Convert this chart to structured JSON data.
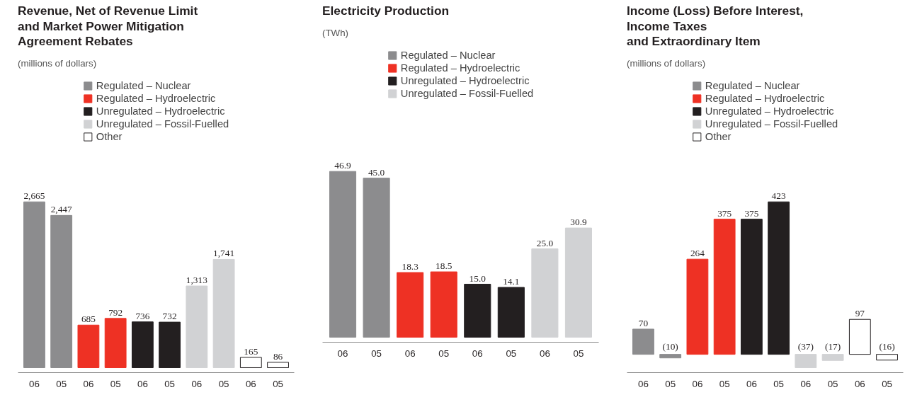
{
  "chart_data": [
    {
      "type": "bar",
      "title": "Revenue, Net of Revenue Limit\nand Market Power Mitigation\nAgreement Rebates",
      "subtitle": "(millions of dollars)",
      "categories": [
        "06",
        "05",
        "06",
        "05",
        "06",
        "05",
        "06",
        "05",
        "06",
        "05"
      ],
      "legend": "top",
      "series": [
        {
          "name": "Regulated – Nuclear",
          "color": "#8c8c8e",
          "values": [
            2665,
            2447,
            null,
            null,
            null,
            null,
            null,
            null,
            null,
            null
          ],
          "value_labels": [
            "2,665",
            "2,447",
            null,
            null,
            null,
            null,
            null,
            null,
            null,
            null
          ]
        },
        {
          "name": "Regulated – Hydroelectric",
          "color": "#ee3124",
          "values": [
            null,
            null,
            685,
            792,
            null,
            null,
            null,
            null,
            null,
            null
          ],
          "value_labels": [
            null,
            null,
            "685",
            "792",
            null,
            null,
            null,
            null,
            null,
            null
          ]
        },
        {
          "name": "Unregulated – Hydroelectric",
          "color": "#231f20",
          "values": [
            null,
            null,
            null,
            null,
            736,
            732,
            null,
            null,
            null,
            null
          ],
          "value_labels": [
            null,
            null,
            null,
            null,
            "736",
            "732",
            null,
            null,
            null,
            null
          ]
        },
        {
          "name": "Unregulated – Fossil-Fuelled",
          "color": "#d1d2d4",
          "values": [
            null,
            null,
            null,
            null,
            null,
            null,
            1313,
            1741,
            null,
            null
          ],
          "value_labels": [
            null,
            null,
            null,
            null,
            null,
            null,
            "1,313",
            "1,741",
            null,
            null
          ]
        },
        {
          "name": "Other",
          "color": "#ffffff",
          "values": [
            null,
            null,
            null,
            null,
            null,
            null,
            null,
            null,
            165,
            86
          ],
          "value_labels": [
            null,
            null,
            null,
            null,
            null,
            null,
            null,
            null,
            "165",
            "86"
          ]
        }
      ]
    },
    {
      "type": "bar",
      "title": "Electricity Production",
      "subtitle": "(TWh)",
      "categories": [
        "06",
        "05",
        "06",
        "05",
        "06",
        "05",
        "06",
        "05"
      ],
      "legend": "top",
      "series": [
        {
          "name": "Regulated – Nuclear",
          "color": "#8c8c8e",
          "values": [
            46.9,
            45.0,
            null,
            null,
            null,
            null,
            null,
            null
          ],
          "value_labels": [
            "46.9",
            "45.0",
            null,
            null,
            null,
            null,
            null,
            null
          ]
        },
        {
          "name": "Regulated – Hydroelectric",
          "color": "#ee3124",
          "values": [
            null,
            null,
            18.3,
            18.5,
            null,
            null,
            null,
            null
          ],
          "value_labels": [
            null,
            null,
            "18.3",
            "18.5",
            null,
            null,
            null,
            null
          ]
        },
        {
          "name": "Unregulated – Hydroelectric",
          "color": "#231f20",
          "values": [
            null,
            null,
            null,
            null,
            15.0,
            14.1,
            null,
            null
          ],
          "value_labels": [
            null,
            null,
            null,
            null,
            "15.0",
            "14.1",
            null,
            null
          ]
        },
        {
          "name": "Unregulated – Fossil-Fuelled",
          "color": "#d1d2d4",
          "values": [
            null,
            null,
            null,
            null,
            null,
            null,
            25.0,
            30.9
          ],
          "value_labels": [
            null,
            null,
            null,
            null,
            null,
            null,
            "25.0",
            "30.9"
          ]
        }
      ]
    },
    {
      "type": "bar",
      "title": "Income (Loss) Before Interest,\nIncome Taxes\nand Extraordinary Item",
      "subtitle": "(millions of dollars)",
      "categories": [
        "06",
        "05",
        "06",
        "05",
        "06",
        "05",
        "06",
        "05",
        "06",
        "05"
      ],
      "legend": "top",
      "series": [
        {
          "name": "Regulated – Nuclear",
          "color": "#8c8c8e",
          "values": [
            70,
            -10,
            null,
            null,
            null,
            null,
            null,
            null,
            null,
            null
          ],
          "value_labels": [
            "70",
            "(10)",
            null,
            null,
            null,
            null,
            null,
            null,
            null,
            null
          ]
        },
        {
          "name": "Regulated – Hydroelectric",
          "color": "#ee3124",
          "values": [
            null,
            null,
            264,
            375,
            null,
            null,
            null,
            null,
            null,
            null
          ],
          "value_labels": [
            null,
            null,
            "264",
            "375",
            null,
            null,
            null,
            null,
            null,
            null
          ]
        },
        {
          "name": "Unregulated – Hydroelectric",
          "color": "#231f20",
          "values": [
            null,
            null,
            null,
            null,
            375,
            423,
            null,
            null,
            null,
            null
          ],
          "value_labels": [
            null,
            null,
            null,
            null,
            "375",
            "423",
            null,
            null,
            null,
            null
          ]
        },
        {
          "name": "Unregulated – Fossil-Fuelled",
          "color": "#d1d2d4",
          "values": [
            null,
            null,
            null,
            null,
            null,
            null,
            -37,
            -17,
            null,
            null
          ],
          "value_labels": [
            null,
            null,
            null,
            null,
            null,
            null,
            "(37)",
            "(17)",
            null,
            null
          ]
        },
        {
          "name": "Other",
          "color": "#ffffff",
          "values": [
            null,
            null,
            null,
            null,
            null,
            null,
            null,
            null,
            97,
            -16
          ],
          "value_labels": [
            null,
            null,
            null,
            null,
            null,
            null,
            null,
            null,
            "97",
            "(16)"
          ]
        }
      ]
    }
  ]
}
